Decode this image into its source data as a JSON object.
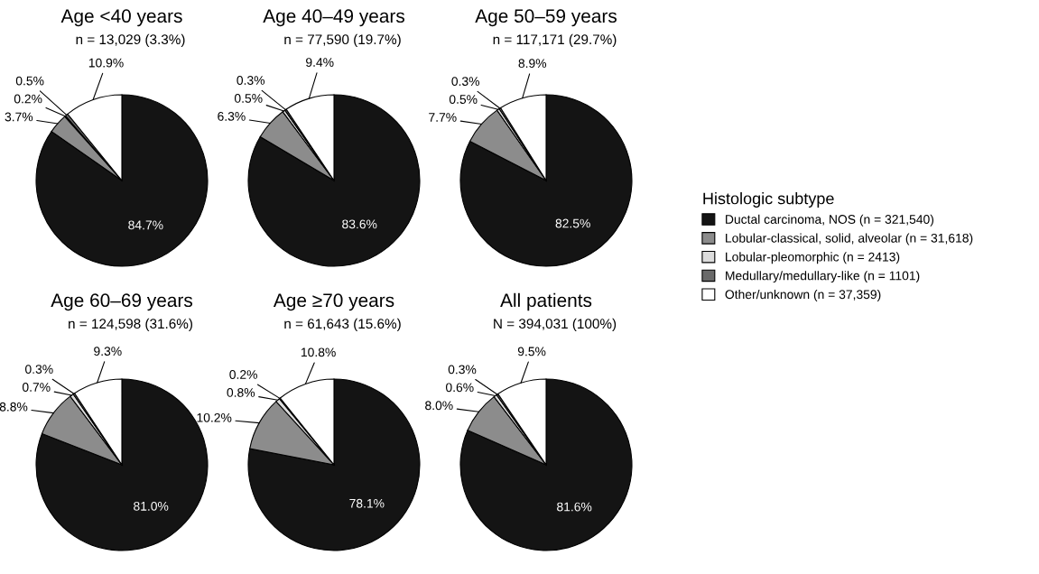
{
  "chart_data": [
    {
      "type": "pie",
      "title": "Age <40 years",
      "subtitle": "n = 13,029 (3.3%)",
      "categories": [
        "Ductal carcinoma, NOS (n = 321,540)",
        "Lobular-classical, solid, alveolar (n = 31,618)",
        "Lobular-pleomorphic (n = 2413)",
        "Medullary/medullary-like (n = 1101)",
        "Other/unknown (n = 37,359)"
      ],
      "values": [
        84.7,
        3.7,
        0.2,
        0.5,
        10.9
      ],
      "value_labels": [
        "84.7%",
        "3.7%",
        "0.2%",
        "0.5%",
        "10.9%"
      ],
      "colors": [
        "#141414",
        "#8c8c8c",
        "#dcdcdc",
        "#6a6a6a",
        "#ffffff"
      ],
      "legend": "right",
      "legend_title": "Histologic subtype"
    },
    {
      "type": "pie",
      "title": "Age 40–49 years",
      "subtitle": "n = 77,590 (19.7%)",
      "values": [
        83.6,
        6.3,
        0.5,
        0.3,
        9.4
      ],
      "value_labels": [
        "83.6%",
        "6.3%",
        "0.5%",
        "0.3%",
        "9.4%"
      ],
      "colors": [
        "#141414",
        "#8c8c8c",
        "#dcdcdc",
        "#6a6a6a",
        "#ffffff"
      ]
    },
    {
      "type": "pie",
      "title": "Age 50–59 years",
      "subtitle": "n = 117,171 (29.7%)",
      "values": [
        82.5,
        7.7,
        0.5,
        0.3,
        8.9
      ],
      "value_labels": [
        "82.5%",
        "7.7%",
        "0.5%",
        "0.3%",
        "8.9%"
      ],
      "colors": [
        "#141414",
        "#8c8c8c",
        "#dcdcdc",
        "#6a6a6a",
        "#ffffff"
      ]
    },
    {
      "type": "pie",
      "title": "Age 60–69 years",
      "subtitle": "n = 124,598 (31.6%)",
      "values": [
        81.0,
        8.8,
        0.7,
        0.3,
        9.3
      ],
      "value_labels": [
        "81.0%",
        "8.8%",
        "0.7%",
        "0.3%",
        "9.3%"
      ],
      "colors": [
        "#141414",
        "#8c8c8c",
        "#dcdcdc",
        "#6a6a6a",
        "#ffffff"
      ]
    },
    {
      "type": "pie",
      "title": "Age ≥70 years",
      "subtitle": "n = 61,643 (15.6%)",
      "values": [
        78.1,
        10.2,
        0.8,
        0.2,
        10.8
      ],
      "value_labels": [
        "78.1%",
        "10.2%",
        "0.8%",
        "0.2%",
        "10.8%"
      ],
      "colors": [
        "#141414",
        "#8c8c8c",
        "#dcdcdc",
        "#6a6a6a",
        "#ffffff"
      ]
    },
    {
      "type": "pie",
      "title": "All patients",
      "subtitle": "N = 394,031 (100%)",
      "values": [
        81.6,
        8.0,
        0.6,
        0.3,
        9.5
      ],
      "value_labels": [
        "81.6%",
        "8.0%",
        "0.6%",
        "0.3%",
        "9.5%"
      ],
      "colors": [
        "#141414",
        "#8c8c8c",
        "#dcdcdc",
        "#6a6a6a",
        "#ffffff"
      ]
    }
  ]
}
